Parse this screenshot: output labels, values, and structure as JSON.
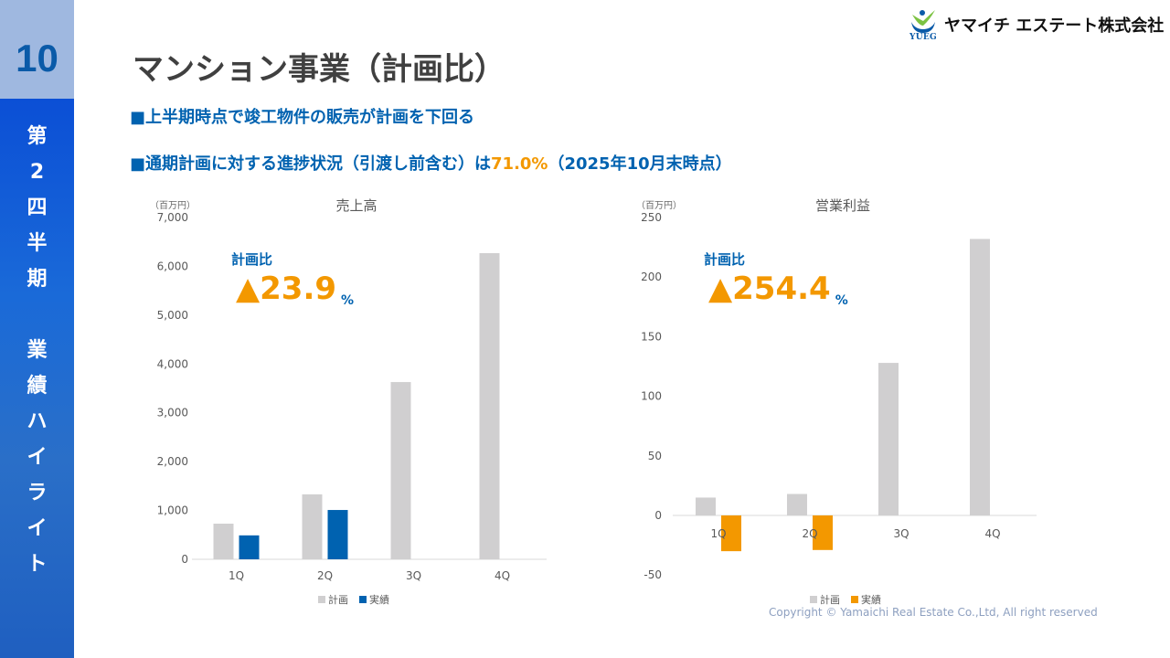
{
  "sidebar": {
    "page_number": "10",
    "vertical_text": [
      "第",
      "2",
      "四",
      "半",
      "期",
      "",
      "業",
      "績",
      "ハ",
      "イ",
      "ラ",
      "イ",
      "ト"
    ]
  },
  "logo": {
    "company": "ヤマイチ エステート株式会社",
    "mark_text": "YUEG"
  },
  "title": "マンション事業（計画比）",
  "bullets": [
    {
      "marker": "■",
      "text": "上半期時点で竣工物件の販売が計画を下回る"
    },
    {
      "marker": "■",
      "pre": "通期計画に対する進捗状況（引渡し前含む）は",
      "highlight": "71.0%",
      "post": "（2025年10月末時点）"
    }
  ],
  "colors": {
    "plan": "#d0cfd0",
    "actual_sales": "#0062b0",
    "actual_profit": "#f39800",
    "accent_blue": "#0062b0",
    "accent_orange": "#f39800"
  },
  "chart_data": [
    {
      "type": "bar",
      "title": "売上高",
      "unit": "（百万円）",
      "categories": [
        "1Q",
        "2Q",
        "3Q",
        "4Q"
      ],
      "series": [
        {
          "name": "計画",
          "values": [
            730,
            1330,
            3630,
            6270
          ]
        },
        {
          "name": "実績",
          "values": [
            490,
            1010,
            null,
            null
          ]
        }
      ],
      "ylim": [
        0,
        7000
      ],
      "yticks": [
        0,
        1000,
        2000,
        3000,
        4000,
        5000,
        6000,
        7000
      ],
      "ytick_labels": [
        "0",
        "1,000",
        "2,000",
        "3,000",
        "4,000",
        "5,000",
        "6,000",
        "7,000"
      ],
      "legend": "bottom",
      "annotation": {
        "label": "計画比",
        "value": "▲23.9",
        "unit": "%"
      }
    },
    {
      "type": "bar",
      "title": "営業利益",
      "unit": "（百万円）",
      "categories": [
        "1Q",
        "2Q",
        "3Q",
        "4Q"
      ],
      "series": [
        {
          "name": "計画",
          "values": [
            15,
            18,
            128,
            232
          ]
        },
        {
          "name": "実績",
          "values": [
            -30,
            -29,
            null,
            null
          ]
        }
      ],
      "ylim": [
        -50,
        250
      ],
      "yticks": [
        -50,
        0,
        50,
        100,
        150,
        200,
        250
      ],
      "ytick_labels": [
        "-50",
        "0",
        "50",
        "100",
        "150",
        "200",
        "250"
      ],
      "legend": "bottom",
      "annotation": {
        "label": "計画比",
        "value": "▲254.4",
        "unit": "%"
      }
    }
  ],
  "copyright": "Copyright © Yamaichi Real Estate Co.,Ltd, All right reserved"
}
